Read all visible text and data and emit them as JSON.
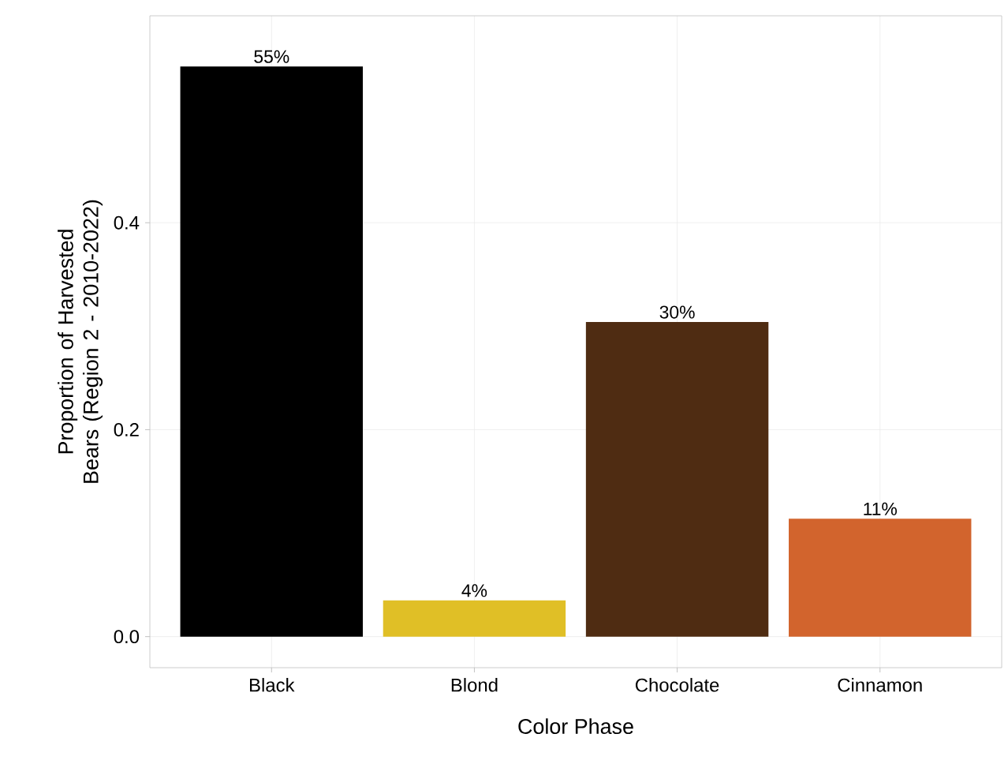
{
  "chart_data": {
    "type": "bar",
    "xlabel": "Color Phase",
    "ylabel": "Proportion of Harvested Bears (Region 2 - 2010-2022)",
    "categories": [
      "Black",
      "Blond",
      "Chocolate",
      "Cinnamon"
    ],
    "values": [
      0.551,
      0.035,
      0.304,
      0.114
    ],
    "colors": [
      "#000000",
      "#e0bf26",
      "#4f2c12",
      "#d2642d"
    ],
    "value_labels": [
      "55%",
      "4%",
      "30%",
      "11%"
    ],
    "ylim": [
      -0.03,
      0.6
    ],
    "yticks": [
      {
        "value": 0.0,
        "label": "0.0"
      },
      0.2,
      0.4
    ],
    "grid": true
  }
}
